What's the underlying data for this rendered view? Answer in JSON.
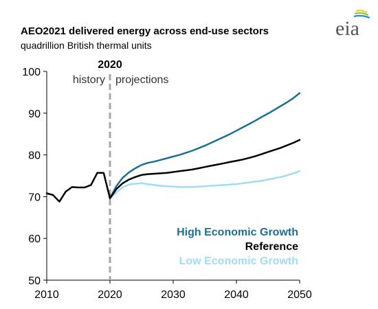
{
  "header": {
    "title": "AEO2021 delivered energy across end-use sectors",
    "subtitle": "quadrillion  British thermal units",
    "logo_text": "eia"
  },
  "colors": {
    "high": "#1a6f93",
    "reference": "#000000",
    "low": "#9fdcf5",
    "divider": "#a6a6a6",
    "logo_arc_yellow": "#f5c518",
    "logo_arc_green": "#8cc63f",
    "logo_arc_blue": "#1a8fc9"
  },
  "chart_data": {
    "type": "line",
    "title": "AEO2021 delivered energy across end-use sectors",
    "ylabel": "quadrillion  British thermal units",
    "xlim": [
      2010,
      2050
    ],
    "ylim": [
      50,
      100
    ],
    "x_ticks": [
      2010,
      2020,
      2030,
      2040,
      2050
    ],
    "y_ticks": [
      50,
      60,
      70,
      80,
      90,
      100
    ],
    "grid": false,
    "legend_position": "bottom-right",
    "annotations": {
      "divider_year": "2020",
      "history": "history",
      "projections": "projections"
    },
    "series": [
      {
        "name": "High Economic Growth",
        "color": "#1a6f93",
        "x": [
          2020,
          2021,
          2022,
          2023,
          2024,
          2025,
          2026,
          2027,
          2028,
          2029,
          2030,
          2031,
          2032,
          2033,
          2034,
          2035,
          2036,
          2037,
          2038,
          2039,
          2040,
          2041,
          2042,
          2043,
          2044,
          2045,
          2046,
          2047,
          2048,
          2049,
          2050
        ],
        "values": [
          69.6,
          72.5,
          74.5,
          75.8,
          76.8,
          77.6,
          78.1,
          78.4,
          78.8,
          79.2,
          79.6,
          80.0,
          80.5,
          81.0,
          81.6,
          82.2,
          82.9,
          83.6,
          84.3,
          85.0,
          85.8,
          86.6,
          87.4,
          88.2,
          89.1,
          89.9,
          90.8,
          91.7,
          92.6,
          93.6,
          94.8
        ]
      },
      {
        "name": "Reference",
        "color": "#000000",
        "x": [
          2010,
          2011,
          2012,
          2013,
          2014,
          2015,
          2016,
          2017,
          2018,
          2019,
          2020,
          2021,
          2022,
          2023,
          2024,
          2025,
          2026,
          2027,
          2028,
          2029,
          2030,
          2031,
          2032,
          2033,
          2034,
          2035,
          2036,
          2037,
          2038,
          2039,
          2040,
          2041,
          2042,
          2043,
          2044,
          2045,
          2046,
          2047,
          2048,
          2049,
          2050
        ],
        "values": [
          70.8,
          70.4,
          68.8,
          71.2,
          72.3,
          72.2,
          72.2,
          72.8,
          75.7,
          75.7,
          69.6,
          71.8,
          73.2,
          74.1,
          74.7,
          75.2,
          75.4,
          75.5,
          75.6,
          75.7,
          75.9,
          76.1,
          76.3,
          76.5,
          76.8,
          77.1,
          77.4,
          77.7,
          78.0,
          78.3,
          78.6,
          78.9,
          79.3,
          79.7,
          80.2,
          80.7,
          81.2,
          81.7,
          82.3,
          82.9,
          83.6
        ]
      },
      {
        "name": "Low Economic Growth",
        "color": "#9fdcf5",
        "x": [
          2020,
          2021,
          2022,
          2023,
          2024,
          2025,
          2026,
          2027,
          2028,
          2029,
          2030,
          2031,
          2032,
          2033,
          2034,
          2035,
          2036,
          2037,
          2038,
          2039,
          2040,
          2041,
          2042,
          2043,
          2044,
          2045,
          2046,
          2047,
          2048,
          2049,
          2050
        ],
        "values": [
          69.6,
          71.0,
          72.2,
          72.9,
          73.1,
          73.2,
          73.0,
          72.8,
          72.6,
          72.5,
          72.4,
          72.3,
          72.3,
          72.3,
          72.4,
          72.5,
          72.6,
          72.7,
          72.8,
          72.9,
          73.0,
          73.2,
          73.4,
          73.6,
          73.8,
          74.1,
          74.4,
          74.7,
          75.1,
          75.6,
          76.1
        ]
      }
    ]
  }
}
